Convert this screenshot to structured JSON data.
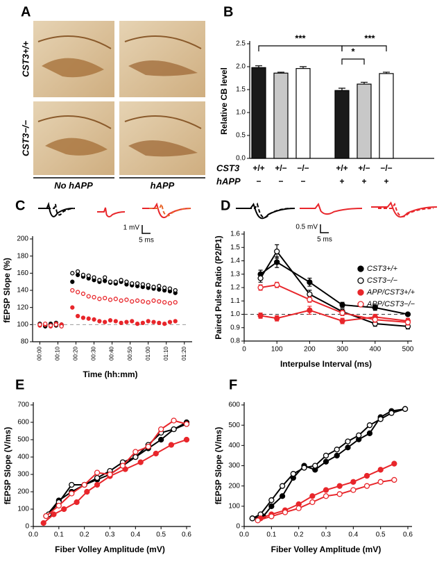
{
  "panel_a": {
    "letter": "A",
    "rows": [
      "CST3+/+",
      "CST3−/−"
    ],
    "columns": [
      "No hAPP",
      "hAPP"
    ]
  },
  "chart_data": [
    {
      "type": "bar",
      "panel": "B",
      "ylabel": "Relative CB level",
      "values": [
        1.98,
        1.86,
        1.96,
        1.48,
        1.62,
        1.85
      ],
      "errors": [
        0.04,
        0.02,
        0.04,
        0.05,
        0.04,
        0.03
      ],
      "colors": [
        "#1a1a1a",
        "#c8c8c8",
        "#ffffff",
        "#1a1a1a",
        "#c8c8c8",
        "#ffffff"
      ],
      "rows": [
        {
          "name": "CST3",
          "labels": [
            "+/+",
            "+/−",
            "−/−",
            "+/+",
            "+/−",
            "−/−"
          ]
        },
        {
          "name": "hAPP",
          "labels": [
            "−",
            "−",
            "−",
            "+",
            "+",
            "+"
          ]
        }
      ],
      "significance": [
        "***",
        "*",
        "***"
      ],
      "ylim": [
        0,
        2.5
      ],
      "yticks": [
        {
          "value": 0,
          "label": "0.0"
        },
        0.5,
        {
          "value": 1,
          "label": "1.0"
        },
        1.5,
        {
          "value": 2,
          "label": "2.0"
        },
        2.5
      ]
    },
    {
      "type": "line",
      "panel": "C",
      "ylabel": "fEPSP Slope (%)",
      "xlabel": "Time (hh:mm)",
      "scale_bar": {
        "y": "1 mV",
        "x": "5 ms"
      },
      "connect": false,
      "reference_line": 100,
      "x": [
        0,
        3,
        6,
        9,
        12,
        18,
        21,
        24,
        27,
        30,
        33,
        36,
        39,
        42,
        45,
        48,
        51,
        54,
        57,
        60,
        63,
        66,
        69,
        72,
        75
      ],
      "series": [
        {
          "color": "#000000",
          "fill": "#000000",
          "values": [
            100,
            98,
            101,
            99,
            100,
            150,
            158,
            156,
            154,
            152,
            150,
            151,
            149,
            148,
            150,
            147,
            146,
            145,
            144,
            143,
            142,
            141,
            140,
            139,
            137
          ]
        },
        {
          "color": "#000000",
          "fill": "#ffffff",
          "values": [
            101,
            99,
            100,
            102,
            99,
            160,
            162,
            158,
            157,
            155,
            152,
            155,
            150,
            150,
            152,
            150,
            148,
            148,
            147,
            146,
            144,
            145,
            143,
            142,
            140
          ]
        },
        {
          "color": "#e8262b",
          "fill": "#e8262b",
          "values": [
            99,
            100,
            98,
            101,
            100,
            120,
            110,
            108,
            107,
            106,
            104,
            103,
            105,
            104,
            102,
            103,
            104,
            101,
            102,
            104,
            103,
            102,
            101,
            103,
            104
          ]
        },
        {
          "color": "#e8262b",
          "fill": "#ffffff",
          "values": [
            100,
            101,
            99,
            100,
            98,
            140,
            138,
            136,
            133,
            132,
            130,
            131,
            129,
            130,
            128,
            129,
            127,
            128,
            127,
            126,
            128,
            127,
            126,
            125,
            126
          ]
        }
      ],
      "xlim": [
        -4,
        82
      ],
      "xticks": [
        {
          "value": 0,
          "label": "00:00"
        },
        {
          "value": 10,
          "label": "00:10"
        },
        {
          "value": 20,
          "label": "00:20"
        },
        {
          "value": 30,
          "label": "00:30"
        },
        {
          "value": 40,
          "label": "00:40"
        },
        {
          "value": 50,
          "label": "00:50"
        },
        {
          "value": 60,
          "label": "01:00"
        },
        {
          "value": 70,
          "label": "01:10"
        },
        {
          "value": 80,
          "label": "01:20"
        }
      ],
      "ylim": [
        80,
        200
      ],
      "yticks": [
        80,
        100,
        120,
        140,
        160,
        180,
        200
      ]
    },
    {
      "type": "line",
      "panel": "D",
      "ylabel": "Paired Pulse Ratio (P2/P1)",
      "xlabel": "Interpulse Interval (ms)",
      "scale_bar": {
        "y": "0.5 mV",
        "x": "5 ms"
      },
      "connect": true,
      "reference_line": 1,
      "legend": true,
      "x": [
        50,
        100,
        200,
        300,
        400,
        500
      ],
      "series": [
        {
          "name": "CST3+/+",
          "color": "#000000",
          "fill": "#000000",
          "values": [
            1.3,
            1.39,
            1.24,
            1.07,
            1.05,
            1.0
          ],
          "errors": [
            0.03,
            0.04,
            0.03,
            0.02,
            0.02,
            0.01
          ]
        },
        {
          "name": "CST3−/−",
          "color": "#000000",
          "fill": "#ffffff",
          "values": [
            1.27,
            1.47,
            1.15,
            1.02,
            0.93,
            0.91
          ],
          "errors": [
            0.03,
            0.05,
            0.03,
            0.02,
            0.02,
            0.02
          ]
        },
        {
          "name": "APP/CST3+/+",
          "color": "#e8262b",
          "fill": "#e8262b",
          "values": [
            0.99,
            0.97,
            1.03,
            0.95,
            0.98,
            0.95
          ],
          "errors": [
            0.02,
            0.02,
            0.03,
            0.02,
            0.02,
            0.02
          ]
        },
        {
          "name": "APP/CST3−/−",
          "color": "#e8262b",
          "fill": "#ffffff",
          "values": [
            1.2,
            1.22,
            1.11,
            1.01,
            0.96,
            0.94
          ],
          "errors": [
            0.02,
            0.02,
            0.02,
            0.02,
            0.02,
            0.02
          ]
        }
      ],
      "xlim": [
        0,
        500
      ],
      "xticks": [
        0,
        100,
        200,
        300,
        400,
        500
      ],
      "ylim": [
        0.8,
        1.6
      ],
      "yticks": [
        0.8,
        0.9,
        {
          "value": 1,
          "label": "1.0"
        },
        1.1,
        1.2,
        1.3,
        1.4,
        1.5,
        1.6
      ]
    },
    {
      "type": "line",
      "panel": "E",
      "ylabel": "fEPSP Slope (V/ms)",
      "xlabel": "Fiber Volley Amplitude (mV)",
      "connect": true,
      "series": [
        {
          "color": "#000000",
          "fill": "#000000",
          "x": [
            0.05,
            0.1,
            0.15,
            0.2,
            0.25,
            0.3,
            0.35,
            0.4,
            0.45,
            0.5,
            0.55,
            0.6
          ],
          "values": [
            60,
            150,
            200,
            240,
            270,
            300,
            350,
            400,
            450,
            500,
            560,
            600
          ]
        },
        {
          "color": "#000000",
          "fill": "#ffffff",
          "x": [
            0.06,
            0.1,
            0.15,
            0.2,
            0.25,
            0.3,
            0.35,
            0.4,
            0.45,
            0.5,
            0.55,
            0.6
          ],
          "values": [
            70,
            140,
            240,
            240,
            280,
            320,
            370,
            400,
            470,
            540,
            560,
            590
          ]
        },
        {
          "color": "#e8262b",
          "fill": "#e8262b",
          "x": [
            0.04,
            0.08,
            0.12,
            0.17,
            0.21,
            0.25,
            0.3,
            0.36,
            0.42,
            0.48,
            0.54,
            0.6
          ],
          "values": [
            20,
            70,
            100,
            140,
            200,
            240,
            290,
            330,
            370,
            420,
            470,
            500
          ]
        },
        {
          "color": "#e8262b",
          "fill": "#ffffff",
          "x": [
            0.05,
            0.1,
            0.15,
            0.2,
            0.25,
            0.3,
            0.35,
            0.4,
            0.45,
            0.5,
            0.55,
            0.6
          ],
          "values": [
            60,
            120,
            190,
            240,
            310,
            300,
            350,
            430,
            460,
            560,
            610,
            590
          ]
        }
      ],
      "xlim": [
        0,
        0.6
      ],
      "xticks": [
        {
          "value": 0,
          "label": "0.0"
        },
        0.1,
        0.2,
        0.3,
        0.4,
        0.5,
        0.6
      ],
      "ylim": [
        0,
        700
      ],
      "yticks": [
        0,
        100,
        200,
        300,
        400,
        500,
        600,
        700
      ]
    },
    {
      "type": "line",
      "panel": "F",
      "ylabel": "fEPSP Slope (V/ms)",
      "xlabel": "Fiber Volley Amplitude (mV)",
      "connect": true,
      "series": [
        {
          "color": "#000000",
          "fill": "#000000",
          "x": [
            0.03,
            0.07,
            0.1,
            0.14,
            0.18,
            0.22,
            0.26,
            0.3,
            0.34,
            0.38,
            0.42,
            0.46,
            0.5,
            0.54,
            0.59
          ],
          "values": [
            40,
            50,
            100,
            150,
            240,
            300,
            280,
            320,
            350,
            390,
            430,
            460,
            540,
            570,
            580
          ]
        },
        {
          "color": "#000000",
          "fill": "#ffffff",
          "x": [
            0.03,
            0.06,
            0.1,
            0.14,
            0.18,
            0.22,
            0.26,
            0.3,
            0.34,
            0.38,
            0.42,
            0.46,
            0.5,
            0.54,
            0.59
          ],
          "values": [
            40,
            60,
            130,
            200,
            260,
            290,
            300,
            350,
            380,
            420,
            450,
            500,
            530,
            560,
            580
          ]
        },
        {
          "color": "#e8262b",
          "fill": "#e8262b",
          "x": [
            0.06,
            0.1,
            0.15,
            0.2,
            0.25,
            0.3,
            0.35,
            0.4,
            0.45,
            0.5,
            0.55
          ],
          "values": [
            40,
            60,
            80,
            110,
            150,
            180,
            200,
            220,
            250,
            280,
            310
          ]
        },
        {
          "color": "#e8262b",
          "fill": "#ffffff",
          "x": [
            0.05,
            0.1,
            0.15,
            0.2,
            0.25,
            0.3,
            0.35,
            0.4,
            0.45,
            0.5,
            0.55
          ],
          "values": [
            30,
            50,
            70,
            90,
            120,
            150,
            160,
            180,
            200,
            220,
            230
          ]
        }
      ],
      "xlim": [
        0,
        0.6
      ],
      "xticks": [
        {
          "value": 0,
          "label": "0.0"
        },
        0.1,
        0.2,
        0.3,
        0.4,
        0.5,
        0.6
      ],
      "ylim": [
        0,
        600
      ],
      "yticks": [
        0,
        100,
        200,
        300,
        400,
        500,
        600
      ]
    }
  ]
}
